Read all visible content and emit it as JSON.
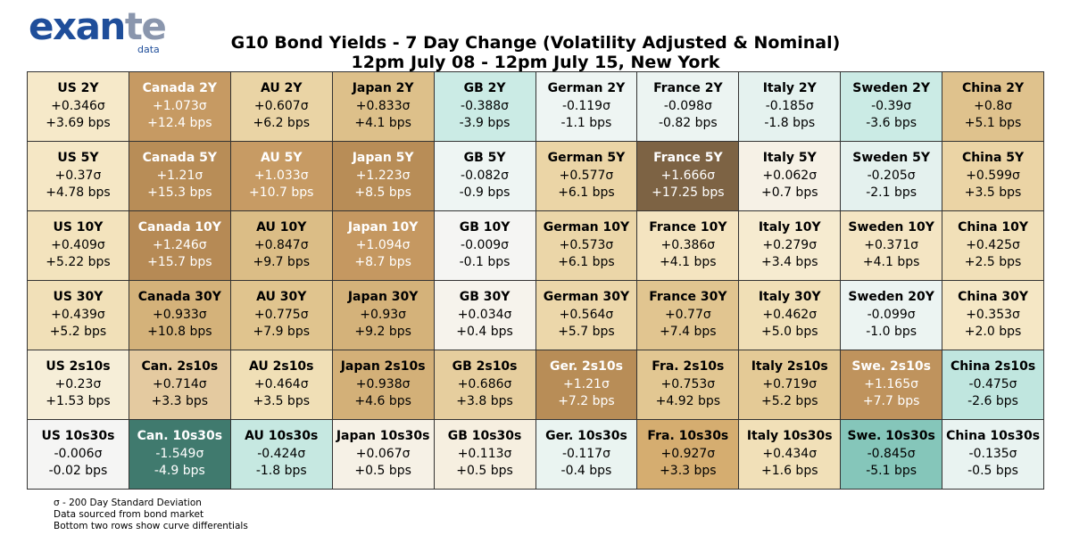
{
  "logo": {
    "word_main": "exan",
    "word_accent": "te",
    "sub": "data"
  },
  "title_line1": "G10 Bond Yields - 7 Day Change (Volatility Adjusted & Nominal)",
  "title_line2": "12pm July 08 - 12pm July 15, New York",
  "footnotes": [
    "σ - 200 Day Standard Deviation",
    "Data sourced from bond market",
    "Bottom two rows show curve differentials"
  ],
  "chart_data": {
    "type": "table",
    "title": "G10 Bond Yields - 7 Day Change (Volatility Adjusted & Nominal)",
    "subtitle": "12pm July 08 - 12pm July 15, New York",
    "columns": [
      "US",
      "Canada",
      "AU",
      "Japan",
      "GB",
      "German",
      "France",
      "Italy",
      "Sweden",
      "China"
    ],
    "rows": [
      [
        {
          "label": "US 2Y",
          "sigma": "+0.346σ",
          "bps": "+3.69 bps",
          "color": "#f6e9c9",
          "light": false
        },
        {
          "label": "Canada 2Y",
          "sigma": "+1.073σ",
          "bps": "+12.4 bps",
          "color": "#c69a63",
          "light": true
        },
        {
          "label": "AU 2Y",
          "sigma": "+0.607σ",
          "bps": "+6.2 bps",
          "color": "#ead4a5",
          "light": false
        },
        {
          "label": "Japan 2Y",
          "sigma": "+0.833σ",
          "bps": "+4.1 bps",
          "color": "#ddc08a",
          "light": false
        },
        {
          "label": "GB 2Y",
          "sigma": "-0.388σ",
          "bps": "-3.9 bps",
          "color": "#cbebe5",
          "light": false
        },
        {
          "label": "German 2Y",
          "sigma": "-0.119σ",
          "bps": "-1.1 bps",
          "color": "#eef5f3",
          "light": false
        },
        {
          "label": "France 2Y",
          "sigma": "-0.098σ",
          "bps": "-0.82 bps",
          "color": "#ecf4f2",
          "light": false
        },
        {
          "label": "Italy 2Y",
          "sigma": "-0.185σ",
          "bps": "-1.8 bps",
          "color": "#e5f2ef",
          "light": false
        },
        {
          "label": "Sweden 2Y",
          "sigma": "-0.39σ",
          "bps": "-3.6 bps",
          "color": "#cbebe5",
          "light": false
        },
        {
          "label": "China 2Y",
          "sigma": "+0.8σ",
          "bps": "+5.1 bps",
          "color": "#dfc28d",
          "light": false
        }
      ],
      [
        {
          "label": "US 5Y",
          "sigma": "+0.37σ",
          "bps": "+4.78 bps",
          "color": "#f5e7c5",
          "light": false
        },
        {
          "label": "Canada 5Y",
          "sigma": "+1.21σ",
          "bps": "+15.3 bps",
          "color": "#b88d57",
          "light": true
        },
        {
          "label": "AU 5Y",
          "sigma": "+1.033σ",
          "bps": "+10.7 bps",
          "color": "#c79b64",
          "light": true
        },
        {
          "label": "Japan 5Y",
          "sigma": "+1.223σ",
          "bps": "+8.5 bps",
          "color": "#b88d57",
          "light": true
        },
        {
          "label": "GB 5Y",
          "sigma": "-0.082σ",
          "bps": "-0.9 bps",
          "color": "#eef5f3",
          "light": false
        },
        {
          "label": "German 5Y",
          "sigma": "+0.577σ",
          "bps": "+6.1 bps",
          "color": "#ebd5a6",
          "light": false
        },
        {
          "label": "France 5Y",
          "sigma": "+1.666σ",
          "bps": "+17.25 bps",
          "color": "#7d6344",
          "light": true
        },
        {
          "label": "Italy 5Y",
          "sigma": "+0.062σ",
          "bps": "+0.7 bps",
          "color": "#f6f1e6",
          "light": false
        },
        {
          "label": "Sweden 5Y",
          "sigma": "-0.205σ",
          "bps": "-2.1 bps",
          "color": "#e4f1ee",
          "light": false
        },
        {
          "label": "China 5Y",
          "sigma": "+0.599σ",
          "bps": "+3.5 bps",
          "color": "#ebd4a5",
          "light": false
        }
      ],
      [
        {
          "label": "US 10Y",
          "sigma": "+0.409σ",
          "bps": "+5.22 bps",
          "color": "#f3e3bd",
          "light": false
        },
        {
          "label": "Canada 10Y",
          "sigma": "+1.246σ",
          "bps": "+15.7 bps",
          "color": "#b68a55",
          "light": true
        },
        {
          "label": "AU 10Y",
          "sigma": "+0.847σ",
          "bps": "+9.7 bps",
          "color": "#dbbd86",
          "light": false
        },
        {
          "label": "Japan 10Y",
          "sigma": "+1.094σ",
          "bps": "+8.7 bps",
          "color": "#c59861",
          "light": true
        },
        {
          "label": "GB 10Y",
          "sigma": "-0.009σ",
          "bps": "-0.1 bps",
          "color": "#f5f5f3",
          "light": false
        },
        {
          "label": "German 10Y",
          "sigma": "+0.573σ",
          "bps": "+6.1 bps",
          "color": "#ebd6a8",
          "light": false
        },
        {
          "label": "France 10Y",
          "sigma": "+0.386σ",
          "bps": "+4.1 bps",
          "color": "#f4e4c0",
          "light": false
        },
        {
          "label": "Italy 10Y",
          "sigma": "+0.279σ",
          "bps": "+3.4 bps",
          "color": "#f6ebd0",
          "light": false
        },
        {
          "label": "Sweden 10Y",
          "sigma": "+0.371σ",
          "bps": "+4.1 bps",
          "color": "#f4e5c3",
          "light": false
        },
        {
          "label": "China 10Y",
          "sigma": "+0.425σ",
          "bps": "+2.5 bps",
          "color": "#f1e0b8",
          "light": false
        }
      ],
      [
        {
          "label": "US 30Y",
          "sigma": "+0.439σ",
          "bps": "+5.2 bps",
          "color": "#f1e0b8",
          "light": false
        },
        {
          "label": "Canada 30Y",
          "sigma": "+0.933σ",
          "bps": "+10.8 bps",
          "color": "#d4b27a",
          "light": false
        },
        {
          "label": "AU 30Y",
          "sigma": "+0.775σ",
          "bps": "+7.9 bps",
          "color": "#e0c48e",
          "light": false
        },
        {
          "label": "Japan 30Y",
          "sigma": "+0.93σ",
          "bps": "+9.2 bps",
          "color": "#d4b27a",
          "light": false
        },
        {
          "label": "GB 30Y",
          "sigma": "+0.034σ",
          "bps": "+0.4 bps",
          "color": "#f6f3ec",
          "light": false
        },
        {
          "label": "German 30Y",
          "sigma": "+0.564σ",
          "bps": "+5.7 bps",
          "color": "#ecd7aa",
          "light": false
        },
        {
          "label": "France 30Y",
          "sigma": "+0.77σ",
          "bps": "+7.4 bps",
          "color": "#e1c590",
          "light": false
        },
        {
          "label": "Italy 30Y",
          "sigma": "+0.462σ",
          "bps": "+5.0 bps",
          "color": "#f0dfb6",
          "light": false
        },
        {
          "label": "Sweden 20Y",
          "sigma": "-0.099σ",
          "bps": "-1.0 bps",
          "color": "#ecf4f2",
          "light": false
        },
        {
          "label": "China 30Y",
          "sigma": "+0.353σ",
          "bps": "+2.0 bps",
          "color": "#f5e7c5",
          "light": false
        }
      ],
      [
        {
          "label": "US 2s10s",
          "sigma": "+0.23σ",
          "bps": "+1.53 bps",
          "color": "#f6eed8",
          "light": false
        },
        {
          "label": "Can. 2s10s",
          "sigma": "+0.714σ",
          "bps": "+3.3 bps",
          "color": "#e4caa0",
          "light": false
        },
        {
          "label": "AU 2s10s",
          "sigma": "+0.464σ",
          "bps": "+3.5 bps",
          "color": "#f0dfb6",
          "light": false
        },
        {
          "label": "Japan 2s10s",
          "sigma": "+0.938σ",
          "bps": "+4.6 bps",
          "color": "#d3b078",
          "light": false
        },
        {
          "label": "GB 2s10s",
          "sigma": "+0.686σ",
          "bps": "+3.8 bps",
          "color": "#e6ce9e",
          "light": false
        },
        {
          "label": "Ger. 2s10s",
          "sigma": "+1.21σ",
          "bps": "+7.2 bps",
          "color": "#b88d57",
          "light": true
        },
        {
          "label": "Fra. 2s10s",
          "sigma": "+0.753σ",
          "bps": "+4.92 bps",
          "color": "#e2c792",
          "light": false
        },
        {
          "label": "Italy 2s10s",
          "sigma": "+0.719σ",
          "bps": "+5.2 bps",
          "color": "#e4ca96",
          "light": false
        },
        {
          "label": "Swe. 2s10s",
          "sigma": "+1.165σ",
          "bps": "+7.7 bps",
          "color": "#bf935d",
          "light": true
        },
        {
          "label": "China 2s10s",
          "sigma": "-0.475σ",
          "bps": "-2.6 bps",
          "color": "#c0e6df",
          "light": false
        }
      ],
      [
        {
          "label": "US 10s30s",
          "sigma": "-0.006σ",
          "bps": "-0.02 bps",
          "color": "#f5f5f4",
          "light": false
        },
        {
          "label": "Can. 10s30s",
          "sigma": "-1.549σ",
          "bps": "-4.9 bps",
          "color": "#407a6e",
          "light": true
        },
        {
          "label": "AU 10s30s",
          "sigma": "-0.424σ",
          "bps": "-1.8 bps",
          "color": "#c6e8e1",
          "light": false
        },
        {
          "label": "Japan 10s30s",
          "sigma": "+0.067σ",
          "bps": "+0.5 bps",
          "color": "#f6f1e6",
          "light": false
        },
        {
          "label": "GB 10s30s",
          "sigma": "+0.113σ",
          "bps": "+0.5 bps",
          "color": "#f6efe0",
          "light": false
        },
        {
          "label": "Ger. 10s30s",
          "sigma": "-0.117σ",
          "bps": "-0.4 bps",
          "color": "#eaf4f1",
          "light": false
        },
        {
          "label": "Fra. 10s30s",
          "sigma": "+0.927σ",
          "bps": "+3.3 bps",
          "color": "#d5ad70",
          "light": false
        },
        {
          "label": "Italy 10s30s",
          "sigma": "+0.434σ",
          "bps": "+1.6 bps",
          "color": "#f1e0b8",
          "light": false
        },
        {
          "label": "Swe. 10s30s",
          "sigma": "-0.845σ",
          "bps": "-5.1 bps",
          "color": "#85c6ba",
          "light": false
        },
        {
          "label": "China 10s30s",
          "sigma": "-0.135σ",
          "bps": "-0.5 bps",
          "color": "#e9f3f1",
          "light": false
        }
      ]
    ]
  }
}
